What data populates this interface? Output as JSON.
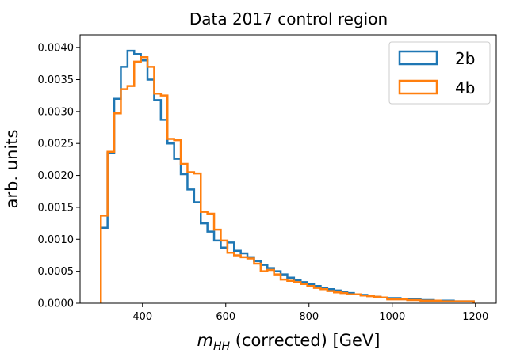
{
  "chart_data": {
    "type": "histogram",
    "title": "Data 2017 control region",
    "xlabel": {
      "main": "m",
      "sub": "HH",
      "rest": " (corrected) [GeV]"
    },
    "ylabel": "arb. units",
    "xlim": [
      250,
      1250
    ],
    "ylim": [
      0,
      0.0042
    ],
    "xticks": [
      400,
      600,
      800,
      1000,
      1200
    ],
    "yticks": [
      0,
      0.0005,
      0.001,
      0.0015,
      0.002,
      0.0025,
      0.003,
      0.0035,
      0.004
    ],
    "ytick_labels": [
      "0.0000",
      "0.0005",
      "0.0010",
      "0.0015",
      "0.0020",
      "0.0025",
      "0.0030",
      "0.0035",
      "0.0040"
    ],
    "legend_position": "top-right",
    "bin_edges": [
      300,
      316,
      332,
      348,
      364,
      380,
      396,
      412,
      428,
      444,
      460,
      476,
      492,
      508,
      524,
      540,
      556,
      572,
      588,
      604,
      620,
      636,
      652,
      668,
      684,
      700,
      716,
      732,
      748,
      764,
      780,
      796,
      812,
      828,
      844,
      860,
      876,
      892,
      908,
      924,
      940,
      956,
      972,
      988,
      1004,
      1020,
      1036,
      1052,
      1068,
      1084,
      1100,
      1116,
      1132,
      1148,
      1164,
      1180,
      1196
    ],
    "series": [
      {
        "name": "2b",
        "color": "#1f77b4",
        "values": [
          0.00118,
          0.00235,
          0.0032,
          0.0037,
          0.00395,
          0.0039,
          0.0038,
          0.0035,
          0.00318,
          0.00287,
          0.0025,
          0.00226,
          0.00202,
          0.00178,
          0.00158,
          0.00125,
          0.00112,
          0.00098,
          0.00087,
          0.00095,
          0.00082,
          0.00078,
          0.00072,
          0.00066,
          0.0006,
          0.00055,
          0.0005,
          0.00045,
          0.0004,
          0.00036,
          0.00033,
          0.0003,
          0.00027,
          0.00024,
          0.00022,
          0.0002,
          0.00018,
          0.00016,
          0.00014,
          0.00013,
          0.00012,
          0.0001,
          9e-05,
          8e-05,
          8e-05,
          7e-05,
          6e-05,
          6e-05,
          5e-05,
          5e-05,
          4e-05,
          4e-05,
          4e-05,
          3e-05,
          3e-05,
          3e-05
        ]
      },
      {
        "name": "4b",
        "color": "#ff7f0e",
        "values": [
          0.00137,
          0.00237,
          0.00297,
          0.00335,
          0.0034,
          0.00378,
          0.00385,
          0.0037,
          0.00328,
          0.00325,
          0.00257,
          0.00255,
          0.00218,
          0.00205,
          0.00203,
          0.00143,
          0.0014,
          0.00115,
          0.00098,
          0.00079,
          0.00075,
          0.00072,
          0.0007,
          0.00062,
          0.0005,
          0.00052,
          0.00045,
          0.00037,
          0.00035,
          0.00033,
          0.0003,
          0.00027,
          0.00024,
          0.00022,
          0.00019,
          0.00017,
          0.00016,
          0.00014,
          0.00014,
          0.00012,
          0.00011,
          0.0001,
          9e-05,
          6e-05,
          6e-05,
          6e-05,
          5e-05,
          5e-05,
          4e-05,
          4e-05,
          4e-05,
          3e-05,
          3e-05,
          3e-05,
          3e-05,
          3e-05
        ]
      }
    ]
  }
}
